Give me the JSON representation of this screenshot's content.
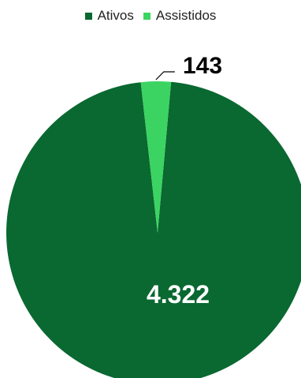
{
  "chart_data": {
    "type": "pie",
    "legend_position": "top",
    "series": [
      {
        "name": "Ativos",
        "value": 4322,
        "label": "4.322",
        "color": "#0a6831"
      },
      {
        "name": "Assistidos",
        "value": 143,
        "label": "143",
        "color": "#3bd462"
      }
    ]
  }
}
